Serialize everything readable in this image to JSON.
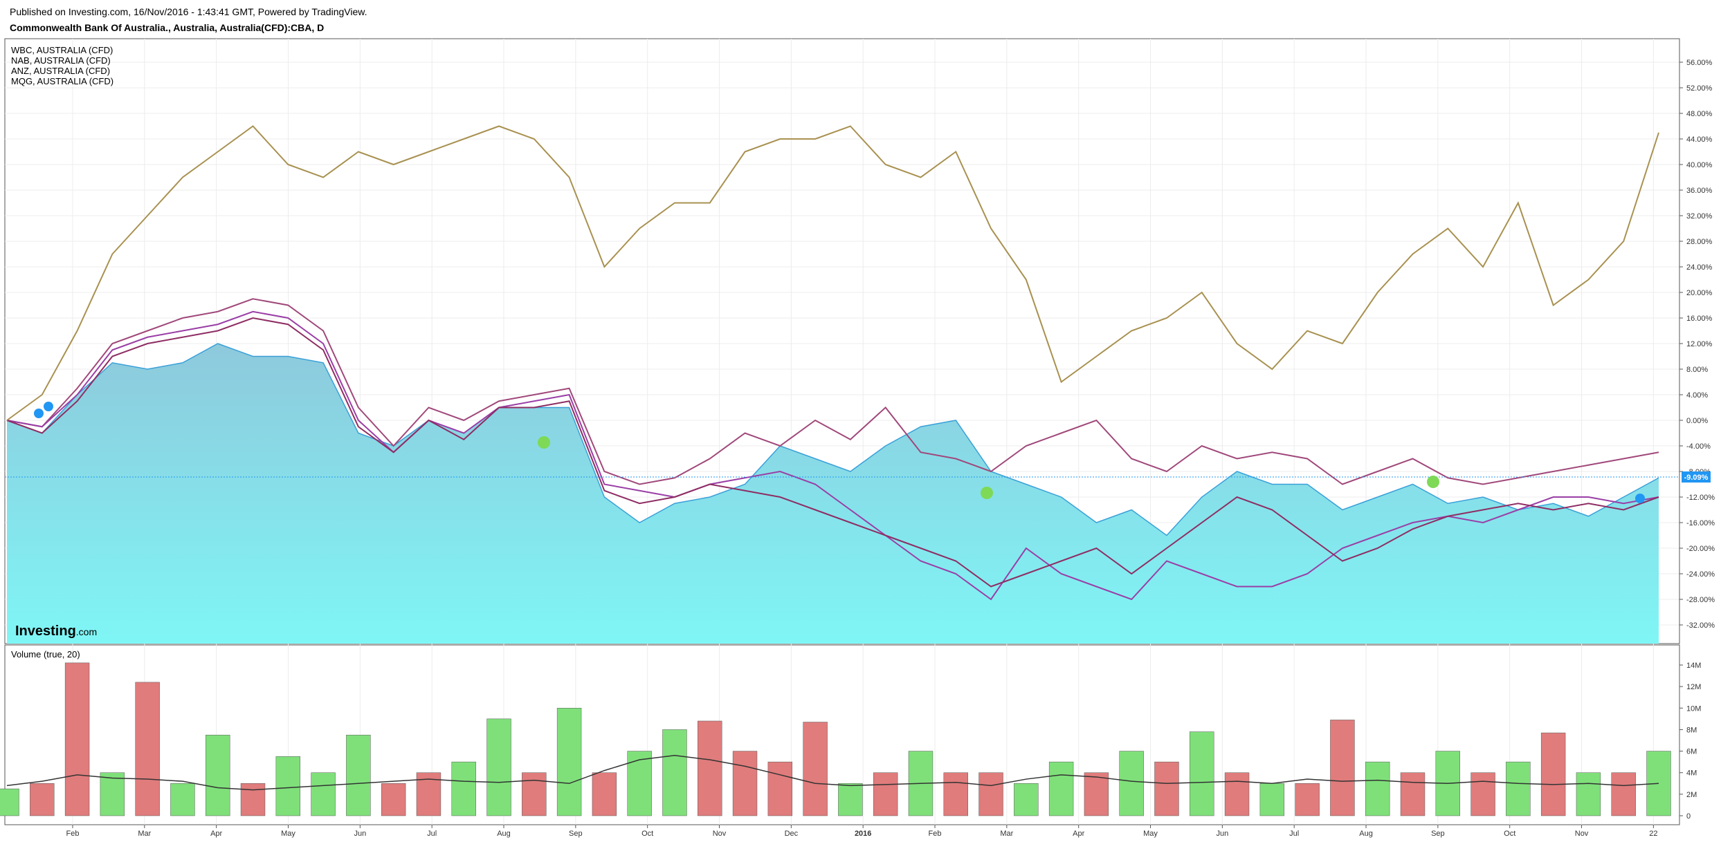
{
  "header": {
    "published": "Published on Investing.com, 16/Nov/2016 - 1:43:41 GMT, Powered by TradingView.",
    "symbol": "Commonwealth Bank Of Australia., Australia, Australia(CFD):CBA, D"
  },
  "legend": [
    "WBC, AUSTRALIA (CFD)",
    "NAB, AUSTRALIA (CFD)",
    "ANZ, AUSTRALIA (CFD)",
    "MQG, AUSTRALIA (CFD)"
  ],
  "volume_label": "Volume (true, 20)",
  "brand": {
    "name": "Investing",
    "suffix": ".com"
  },
  "current_badge": "-9.09%",
  "colors": {
    "cba_fill_top": "#8ec9dc",
    "cba_fill_bottom": "#7ff6f6",
    "cba_line": "#3aa0d8",
    "wbc": "#a0487a",
    "nab": "#9a3ea6",
    "anz": "#8e2d63",
    "mqg": "#a89150",
    "volume_up": "#7fe07a",
    "volume_down": "#e07c7c",
    "volume_ma": "#333333",
    "badge": "#2196f3",
    "dividend_marker": "#7ed957"
  },
  "chart_data": [
    {
      "type": "line",
      "title": "Commonwealth Bank Of Australia., Australia, Australia(CFD):CBA, D",
      "y_unit": "percent change",
      "ylim": [
        -34,
        58
      ],
      "yticks": [
        "56.00%",
        "52.00%",
        "48.00%",
        "44.00%",
        "40.00%",
        "36.00%",
        "32.00%",
        "28.00%",
        "24.00%",
        "20.00%",
        "16.00%",
        "12.00%",
        "8.00%",
        "4.00%",
        "0.00%",
        "-4.00%",
        "-8.00%",
        "-12.00%",
        "-16.00%",
        "-20.00%",
        "-24.00%",
        "-28.00%",
        "-32.00%"
      ],
      "xticks": [
        "Feb",
        "Mar",
        "Apr",
        "May",
        "Jun",
        "Jul",
        "Aug",
        "Sep",
        "Oct",
        "Nov",
        "Dec",
        "2016",
        "Feb",
        "Mar",
        "Apr",
        "May",
        "Jun",
        "Jul",
        "Aug",
        "Sep",
        "Oct",
        "Nov",
        "22"
      ],
      "x_positions": [
        0,
        0.5,
        1,
        1.5,
        2,
        2.5,
        3,
        3.5,
        4,
        4.5,
        5,
        5.5,
        6,
        6.5,
        7,
        7.5,
        8,
        8.5,
        9,
        9.5,
        10,
        10.5,
        11,
        11.5,
        12,
        12.5,
        13,
        13.5,
        14,
        14.5,
        15,
        15.5,
        16,
        16.5,
        17,
        17.5,
        18,
        18.5,
        19,
        19.5,
        20,
        20.5,
        21,
        21.5,
        22,
        22.5,
        23,
        23.5
      ],
      "series": [
        {
          "name": "Commonwealth Bank Of Australia., Australia, Australia(CFD):CBA, D",
          "values": [
            0,
            -2,
            4,
            9,
            8,
            9,
            12,
            10,
            10,
            9,
            -2,
            -4,
            0,
            -2,
            2,
            2,
            2,
            -12,
            -16,
            -13,
            -12,
            -10,
            -4,
            -6,
            -8,
            -4,
            -1,
            0,
            -8,
            -10,
            -12,
            -16,
            -14,
            -18,
            -12,
            -8,
            -10,
            -10,
            -14,
            -12,
            -10,
            -13,
            -12,
            -14,
            -13,
            -15,
            -12,
            -9
          ]
        },
        {
          "name": "WBC, AUSTRALIA (CFD)",
          "values": [
            0,
            -1,
            5,
            12,
            14,
            16,
            17,
            19,
            18,
            14,
            2,
            -4,
            2,
            0,
            3,
            4,
            5,
            -8,
            -10,
            -9,
            -6,
            -2,
            -4,
            0,
            -3,
            2,
            -5,
            -6,
            -8,
            -4,
            -2,
            0,
            -6,
            -8,
            -4,
            -6,
            -5,
            -6,
            -10,
            -8,
            -6,
            -9,
            -10,
            -9,
            -8,
            -7,
            -6,
            -5
          ]
        },
        {
          "name": "NAB, AUSTRALIA (CFD)",
          "values": [
            0,
            -1,
            4,
            11,
            13,
            14,
            15,
            17,
            16,
            12,
            0,
            -5,
            0,
            -2,
            2,
            3,
            4,
            -10,
            -11,
            -12,
            -10,
            -9,
            -8,
            -10,
            -14,
            -18,
            -22,
            -24,
            -28,
            -20,
            -24,
            -26,
            -28,
            -22,
            -24,
            -26,
            -26,
            -24,
            -20,
            -18,
            -16,
            -15,
            -16,
            -14,
            -12,
            -12,
            -13,
            -12
          ]
        },
        {
          "name": "ANZ, AUSTRALIA (CFD)",
          "values": [
            0,
            -2,
            3,
            10,
            12,
            13,
            14,
            16,
            15,
            11,
            -1,
            -5,
            0,
            -3,
            2,
            2,
            3,
            -11,
            -13,
            -12,
            -10,
            -11,
            -12,
            -14,
            -16,
            -18,
            -20,
            -22,
            -26,
            -24,
            -22,
            -20,
            -24,
            -20,
            -16,
            -12,
            -14,
            -18,
            -22,
            -20,
            -17,
            -15,
            -14,
            -13,
            -14,
            -13,
            -14,
            -12
          ]
        },
        {
          "name": "MQG, AUSTRALIA (CFD)",
          "values": [
            0,
            4,
            14,
            26,
            32,
            38,
            42,
            46,
            40,
            38,
            42,
            40,
            42,
            44,
            46,
            44,
            38,
            24,
            30,
            34,
            34,
            42,
            44,
            44,
            46,
            40,
            38,
            42,
            30,
            22,
            6,
            10,
            14,
            16,
            20,
            12,
            8,
            14,
            12,
            20,
            26,
            30,
            24,
            34,
            18,
            22,
            28,
            45
          ]
        }
      ]
    },
    {
      "type": "bar",
      "title": "Volume (true, 20)",
      "y_unit": "shares",
      "ylim": [
        0,
        15
      ],
      "yticks": [
        "14M",
        "12M",
        "10M",
        "8M",
        "6M",
        "4M",
        "2M",
        "0"
      ],
      "x_positions": [
        0,
        0.5,
        1,
        1.5,
        2,
        2.5,
        3,
        3.5,
        4,
        4.5,
        5,
        5.5,
        6,
        6.5,
        7,
        7.5,
        8,
        8.5,
        9,
        9.5,
        10,
        10.5,
        11,
        11.5,
        12,
        12.5,
        13,
        13.5,
        14,
        14.5,
        15,
        15.5,
        16,
        16.5,
        17,
        17.5,
        18,
        18.5,
        19,
        19.5,
        20,
        20.5,
        21,
        21.5,
        22,
        22.5,
        23,
        23.5
      ],
      "values": [
        2.5,
        3,
        14.2,
        4,
        12.4,
        3,
        7.5,
        3,
        5.5,
        4,
        7.5,
        3,
        4,
        5,
        9,
        4,
        10,
        4,
        6,
        8,
        8.8,
        6,
        5,
        8.7,
        3,
        4,
        6,
        4,
        4,
        3,
        5,
        4,
        6,
        5,
        7.8,
        4,
        3,
        3,
        8.9,
        5,
        4,
        6,
        4,
        5,
        7.7,
        4,
        4,
        6
      ],
      "direction": [
        "up",
        "down",
        "down",
        "up",
        "down",
        "up",
        "up",
        "down",
        "up",
        "up",
        "up",
        "down",
        "down",
        "up",
        "up",
        "down",
        "up",
        "down",
        "up",
        "up",
        "down",
        "down",
        "down",
        "down",
        "up",
        "down",
        "up",
        "down",
        "down",
        "up",
        "up",
        "down",
        "up",
        "down",
        "up",
        "down",
        "up",
        "down",
        "down",
        "up",
        "down",
        "up",
        "down",
        "up",
        "down",
        "up",
        "down",
        "up"
      ],
      "moving_average": [
        2.8,
        3.2,
        3.8,
        3.5,
        3.4,
        3.2,
        2.6,
        2.4,
        2.6,
        2.8,
        3.0,
        3.2,
        3.4,
        3.2,
        3.1,
        3.3,
        3.0,
        4.2,
        5.2,
        5.6,
        5.2,
        4.6,
        3.8,
        3.0,
        2.8,
        2.9,
        3.0,
        3.1,
        2.8,
        3.4,
        3.8,
        3.6,
        3.2,
        3.0,
        3.1,
        3.2,
        3.0,
        3.4,
        3.2,
        3.3,
        3.1,
        3.0,
        3.2,
        3.0,
        2.9,
        3.0,
        2.8,
        3.0
      ]
    }
  ]
}
